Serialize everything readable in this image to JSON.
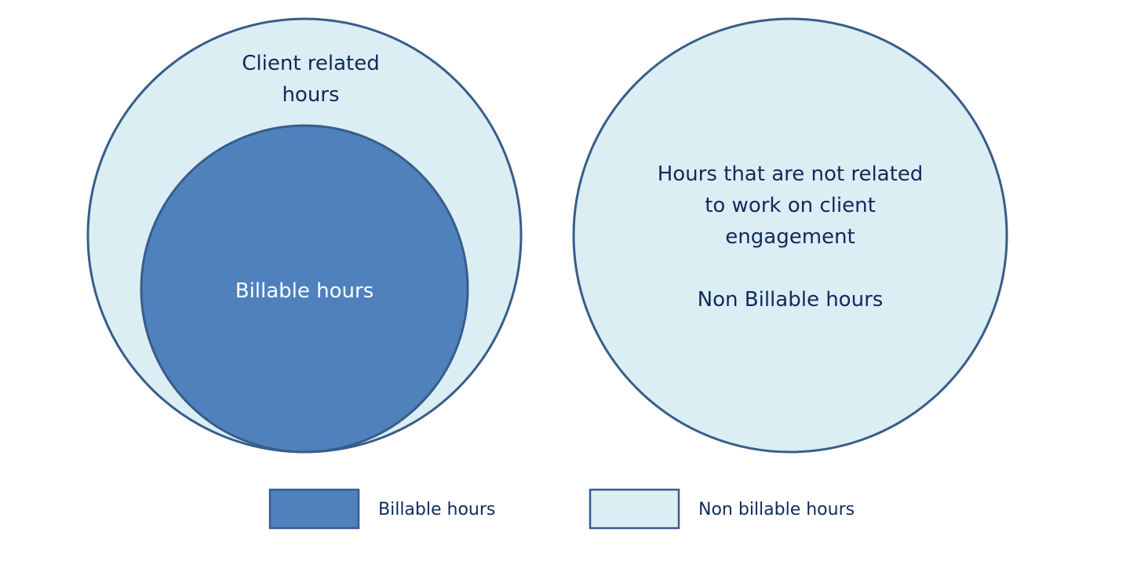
{
  "colors": {
    "billable_fill": "#4f81bd",
    "non_billable_fill": "#dbeef4",
    "outline": "#385d8a",
    "text_dark": "#0f2a5c",
    "text_light": "#ffffff"
  },
  "diagram": {
    "left_group": {
      "outer_label_line1": "Client related",
      "outer_label_line2": "hours",
      "inner_label": "Billable hours"
    },
    "right_group": {
      "label_line1": "Hours that are not related",
      "label_line2": "to work on client",
      "label_line3": "engagement",
      "label_line4": "Non Billable hours"
    }
  },
  "legend": {
    "items": [
      {
        "label": "Billable hours",
        "swatch": "billable_fill"
      },
      {
        "label": "Non billable hours",
        "swatch": "non_billable_fill"
      }
    ]
  }
}
